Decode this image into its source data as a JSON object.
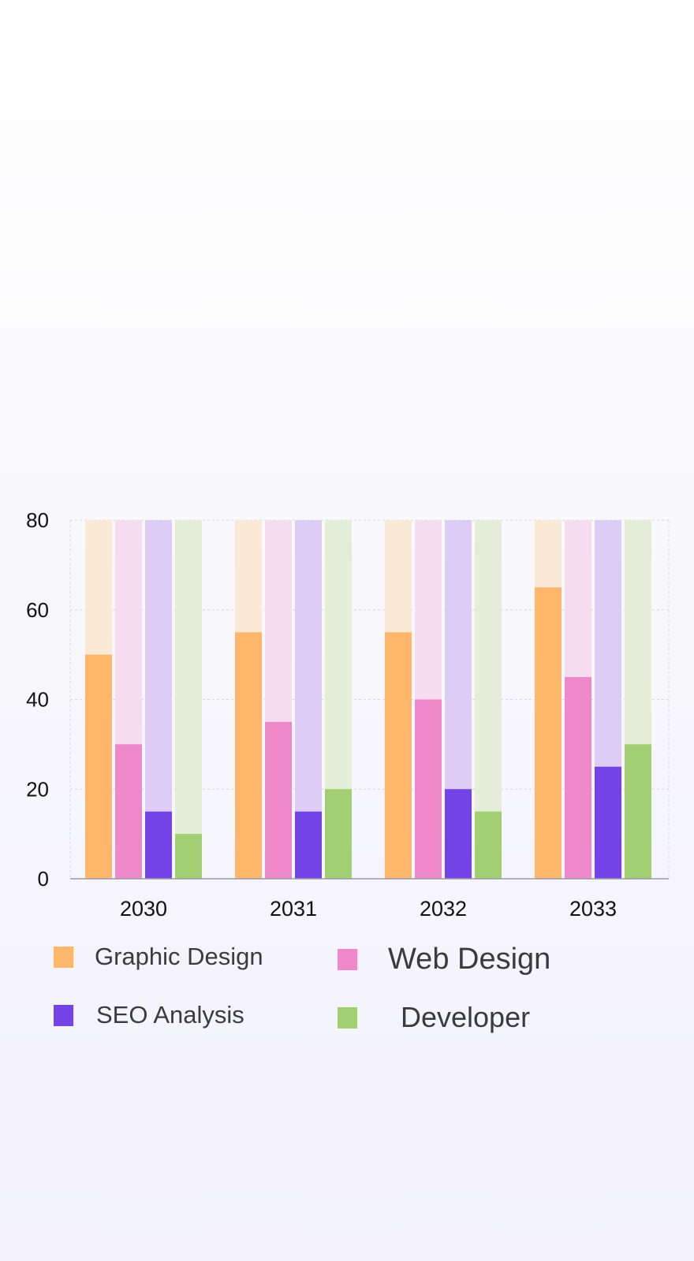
{
  "chart_data": {
    "type": "bar",
    "variant": "grouped bars with faded full-range background bars",
    "categories": [
      "2030",
      "2031",
      "2032",
      "2033"
    ],
    "series": [
      {
        "name": "Graphic Design",
        "values": [
          50,
          55,
          55,
          65
        ],
        "color": "#ffb86b"
      },
      {
        "name": "Web Design",
        "values": [
          30,
          35,
          40,
          45
        ],
        "color": "#ee88c9"
      },
      {
        "name": "SEO Analysis",
        "values": [
          15,
          15,
          20,
          25
        ],
        "color": "#7443e6"
      },
      {
        "name": "Developer",
        "values": [
          10,
          20,
          15,
          30
        ],
        "color": "#a3cf73"
      }
    ],
    "background_colors": [
      "#f9e9d5",
      "#f6dcef",
      "#dcccf6",
      "#e3edd8"
    ],
    "ylim": [
      0,
      80
    ],
    "yticks": [
      "0",
      "20",
      "40",
      "60",
      "80"
    ],
    "grid": true,
    "legend_position": "bottom"
  }
}
